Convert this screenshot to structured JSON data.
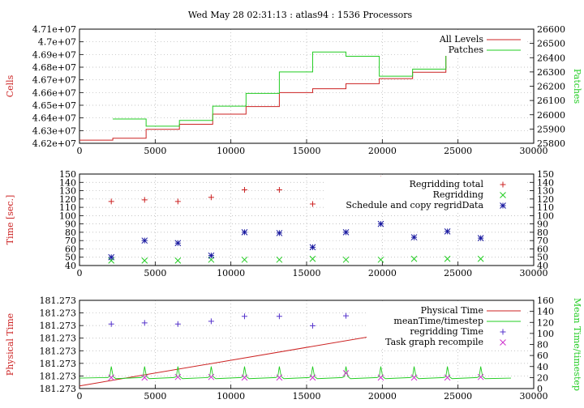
{
  "title": "Wed May 28 02:31:13 : atlas94 : 1536 Processors",
  "colors": {
    "red": "#cc2222",
    "green": "#22cc22",
    "blue": "#1a1aa0",
    "purple": "#5533cc",
    "magenta": "#cc33cc"
  },
  "chart_data": [
    {
      "type": "line",
      "ylabel": "Cells",
      "y2label": "Patches",
      "xlim": [
        0,
        30000
      ],
      "x_ticks": [
        "0",
        "5000",
        "10000",
        "15000",
        "20000",
        "25000",
        "30000"
      ],
      "ylim": [
        46200000,
        47100000
      ],
      "y_ticks": [
        "4.62e+07",
        "4.63e+07",
        "4.64e+07",
        "4.65e+07",
        "4.66e+07",
        "4.67e+07",
        "4.68e+07",
        "4.69e+07",
        "4.7e+07",
        "4.71e+07"
      ],
      "y2lim": [
        25800,
        26600
      ],
      "y2_ticks": [
        "25800",
        "25900",
        "26000",
        "26100",
        "26200",
        "26300",
        "26400",
        "26500",
        "26600"
      ],
      "grid": true,
      "legend_position": "top-right",
      "series": [
        {
          "name": "All Levels",
          "axis": "left",
          "color": "#cc2222",
          "step": true,
          "x": [
            0,
            2200,
            4400,
            6600,
            8800,
            11000,
            13200,
            15400,
            17600,
            19800,
            22000,
            24200,
            25000
          ],
          "values": [
            46225000,
            46240000,
            46310000,
            46350000,
            46430000,
            46490000,
            46600000,
            46630000,
            46670000,
            46710000,
            46760000,
            46950000,
            46960000
          ]
        },
        {
          "name": "Patches",
          "axis": "right",
          "color": "#22cc22",
          "step": true,
          "x": [
            2200,
            4400,
            6600,
            8800,
            11000,
            13200,
            15400,
            17600,
            19800,
            22000,
            24200,
            25000
          ],
          "values": [
            25970,
            25920,
            25960,
            26060,
            26150,
            26300,
            26440,
            26410,
            26270,
            26320,
            26460,
            26520
          ]
        }
      ]
    },
    {
      "type": "scatter",
      "ylabel": "Time [sec.]",
      "xlim": [
        0,
        30000
      ],
      "x_ticks": [
        "0",
        "5000",
        "10000",
        "15000",
        "20000",
        "25000",
        "30000"
      ],
      "ylim": [
        40,
        150
      ],
      "y_ticks": [
        "40",
        "50",
        "60",
        "70",
        "80",
        "90",
        "100",
        "110",
        "120",
        "130",
        "140",
        "150"
      ],
      "grid": true,
      "legend_position": "top-right",
      "series": [
        {
          "name": "Regridding total",
          "marker": "plus",
          "color": "#cc2222",
          "x": [
            2100,
            4300,
            6500,
            8700,
            10900,
            13200,
            15400,
            17600,
            19900,
            22100,
            24300,
            26500
          ],
          "values": [
            117,
            119,
            117,
            122,
            131,
            131,
            114,
            132,
            144,
            126,
            134,
            121
          ]
        },
        {
          "name": "Regridding",
          "marker": "x",
          "color": "#22cc22",
          "x": [
            2100,
            4300,
            6500,
            8700,
            10900,
            13200,
            15400,
            17600,
            19900,
            22100,
            24300,
            26500
          ],
          "values": [
            46,
            46,
            46,
            47,
            47,
            47,
            48,
            47,
            47,
            48,
            48,
            48
          ]
        },
        {
          "name": "Schedule and copy regridData",
          "marker": "asterisk",
          "color": "#1a1aa0",
          "x": [
            2100,
            4300,
            6500,
            8700,
            10900,
            13200,
            15400,
            17600,
            19900,
            22100,
            24300,
            26500
          ],
          "values": [
            50,
            70,
            67,
            52,
            80,
            79,
            62,
            80,
            90,
            74,
            81,
            73
          ]
        }
      ]
    },
    {
      "type": "line",
      "ylabel": "Physical Time",
      "y2label": "Mean Time/timestep",
      "xlim": [
        0,
        30000
      ],
      "x_ticks": [
        "0",
        "5000",
        "10000",
        "15000",
        "20000",
        "25000",
        "30000"
      ],
      "y_ticks": [
        "181.273",
        "181.273",
        "181.273",
        "181.273",
        "181.273",
        "181.273",
        "181.273",
        "181.273"
      ],
      "y2lim": [
        0,
        160
      ],
      "y2_ticks": [
        "0",
        "20",
        "40",
        "60",
        "80",
        "100",
        "120",
        "140",
        "160"
      ],
      "grid": true,
      "legend_position": "top-right",
      "series": [
        {
          "name": "Physical Time",
          "axis": "left",
          "color": "#cc2222",
          "x": [
            0,
            28500
          ],
          "values": [
            0.03,
            0.86
          ]
        },
        {
          "name": "meanTime/timestep",
          "axis": "right",
          "color": "#22cc22",
          "spike_x": [
            2100,
            4300,
            6500,
            8700,
            10900,
            13200,
            15400,
            17600,
            19900,
            22100,
            24300,
            26500
          ],
          "baseline": 19,
          "spike_peak": 40,
          "x_end": 28500
        },
        {
          "name": "regridding Time",
          "axis": "right",
          "marker": "plus",
          "color": "#5533cc",
          "x": [
            2100,
            4300,
            6500,
            8700,
            10900,
            13200,
            15400,
            17600,
            19900,
            22100,
            24300,
            26500
          ],
          "values": [
            117,
            119,
            117,
            122,
            131,
            131,
            114,
            132,
            144,
            126,
            134,
            121
          ]
        },
        {
          "name": "Task graph recompile",
          "axis": "right",
          "marker": "x",
          "color": "#cc33cc",
          "x": [
            2100,
            4300,
            6500,
            8700,
            10900,
            13200,
            15400,
            17600,
            19900,
            22100,
            24300,
            26500
          ],
          "values": [
            20,
            20,
            21,
            21,
            20,
            20,
            20,
            28,
            20,
            20,
            20,
            21
          ]
        }
      ]
    }
  ]
}
